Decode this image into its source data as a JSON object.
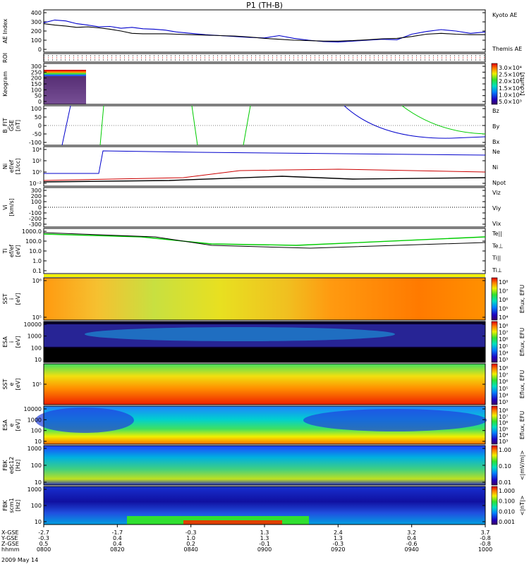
{
  "chart_data": {
    "type": "line",
    "title": "P1 (TH-B)",
    "date": "2009 May 14",
    "x_axis": {
      "row_labels": [
        "X-GSE",
        "Y-GSE",
        "Z-GSE",
        "hhmm"
      ],
      "ticks": [
        {
          "x": "-2.7",
          "y": "-0.3",
          "z": "0.5",
          "t": "0800"
        },
        {
          "x": "-1.7",
          "y": "0.4",
          "z": "0.4",
          "t": "0820"
        },
        {
          "x": "-0.3",
          "y": "1.0",
          "z": "0.2",
          "t": "0840"
        },
        {
          "x": "1.3",
          "y": "1.3",
          "z": "-0.1",
          "t": "0900"
        },
        {
          "x": "2.4",
          "y": "1.3",
          "z": "-0.3",
          "t": "0920"
        },
        {
          "x": "3.2",
          "y": "0.4",
          "z": "-0.6",
          "t": "0940"
        },
        {
          "x": "3.7",
          "y": "-0.8",
          "z": "-0.8",
          "t": "1000"
        }
      ]
    },
    "panels": [
      {
        "id": "ae",
        "ylabel": [
          "AE Index"
        ],
        "ticks": [
          "400",
          "300",
          "200",
          "100",
          "0"
        ],
        "legend": [
          {
            "text": "Kyoto AE",
            "color": "#0000cc"
          },
          {
            "text": "Themis AE",
            "color": "#000000"
          }
        ],
        "series": [
          {
            "name": "Kyoto AE",
            "color": "#0000cc",
            "x": [
              0,
              3,
              6,
              9,
              12,
              15,
              18,
              21,
              24,
              27,
              30,
              33,
              36,
              40,
              44,
              48,
              52,
              56,
              60,
              64,
              68,
              72,
              76,
              80,
              84,
              88,
              92,
              96,
              100,
              104,
              108,
              112,
              116,
              120
            ],
            "y": [
              290,
              320,
              310,
              280,
              265,
              245,
              250,
              230,
              240,
              225,
              220,
              210,
              190,
              175,
              160,
              150,
              140,
              130,
              125,
              150,
              120,
              100,
              85,
              80,
              90,
              100,
              110,
              105,
              165,
              195,
              215,
              200,
              175,
              190
            ]
          },
          {
            "name": "Themis AE",
            "color": "#000000",
            "x": [
              0,
              3,
              6,
              9,
              12,
              15,
              18,
              21,
              24,
              27,
              30,
              33,
              36,
              40,
              44,
              48,
              52,
              56,
              60,
              64,
              68,
              72,
              76,
              80,
              84,
              88,
              92,
              96,
              100,
              104,
              108,
              112,
              116,
              120
            ],
            "y": [
              280,
              265,
              255,
              240,
              245,
              235,
              220,
              200,
              175,
              170,
              170,
              170,
              165,
              160,
              155,
              150,
              145,
              135,
              120,
              110,
              100,
              95,
              90,
              90,
              95,
              105,
              115,
              120,
              140,
              165,
              175,
              165,
              160,
              160
            ]
          }
        ]
      },
      {
        "id": "roi",
        "ylabel": [
          "ROI"
        ],
        "ticks": [],
        "legend": []
      },
      {
        "id": "keogram",
        "ylabel": [
          "Keogram"
        ],
        "ticks": [
          "300",
          "250",
          "200",
          "150",
          "100",
          "50",
          "0"
        ],
        "colorbar": {
          "labels": [
            "3.0×10⁴",
            "2.5×10⁴",
            "2.0×10⁴",
            "1.5×10⁴",
            "1.0×10⁴",
            "5.0×10³"
          ],
          "units": "[counts]"
        }
      },
      {
        "id": "bfit",
        "ylabel": [
          "B_FIT",
          "GSE",
          "[nT]"
        ],
        "ticks": [
          "100",
          "50",
          "0",
          "-50",
          "-100"
        ],
        "legend": [
          {
            "text": "Bz",
            "color": "#cc0000"
          },
          {
            "text": "By",
            "color": "#00aa00"
          },
          {
            "text": "Bx",
            "color": "#0000cc"
          }
        ]
      },
      {
        "id": "ni",
        "ylabel": [
          "Ni",
          "ef/ef",
          "[1/cc]"
        ],
        "ticks": [
          "10⁴",
          "10²",
          "10⁰",
          "10⁻²"
        ],
        "legend": [
          {
            "text": "Ne",
            "color": "#cc0000"
          },
          {
            "text": "Ni",
            "color": "#000000"
          },
          {
            "text": "Npot",
            "color": "#0000cc"
          }
        ]
      },
      {
        "id": "vi",
        "ylabel": [
          "Vi",
          "[km/s]"
        ],
        "ticks": [
          "300",
          "200",
          "100",
          "0",
          "-100",
          "-200",
          "-300"
        ],
        "legend": [
          {
            "text": "Viz",
            "color": "#cc0000"
          },
          {
            "text": "Viy",
            "color": "#00aa00"
          },
          {
            "text": "Vix",
            "color": "#0000cc"
          }
        ]
      },
      {
        "id": "ti",
        "ylabel": [
          "Ti",
          "ef/ef",
          "[eV]"
        ],
        "ticks": [
          "1000.0",
          "100.0",
          "10.0",
          "1.0",
          "0.1"
        ],
        "legend": [
          {
            "text": "Te||",
            "color": "#000000"
          },
          {
            "text": "Te⊥",
            "color": "#cc0000"
          },
          {
            "text": "Ti||",
            "color": "#00aa00"
          },
          {
            "text": "Ti⊥",
            "color": "#0000cc"
          }
        ]
      },
      {
        "id": "sst_i",
        "ylabel": [
          "SST",
          "i",
          "[eV]"
        ],
        "ticks": [
          "10⁶",
          "10⁵"
        ],
        "colorbar": {
          "labels": [
            "10⁸",
            "10⁷",
            "10⁶",
            "10⁵",
            "10⁴"
          ],
          "units": "Eflux, EFU"
        }
      },
      {
        "id": "esa_i",
        "ylabel": [
          "ESA",
          "i",
          "[eV]"
        ],
        "ticks": [
          "10000",
          "1000",
          "100",
          "10"
        ],
        "colorbar": {
          "labels": [
            "10⁸",
            "10⁷",
            "10⁶",
            "10⁵",
            "10⁴",
            "10³"
          ],
          "units": "Eflux, EFU"
        }
      },
      {
        "id": "sst_e",
        "ylabel": [
          "SST",
          "e",
          "[eV]"
        ],
        "ticks": [
          "10⁵"
        ],
        "colorbar": {
          "labels": [
            "10⁸",
            "10⁷",
            "10⁶",
            "10⁵",
            "10⁴",
            "10³"
          ],
          "units": "Eflux, EFU"
        }
      },
      {
        "id": "esa_e",
        "ylabel": [
          "ESA",
          "e",
          "[eV]"
        ],
        "ticks": [
          "10000",
          "1000",
          "100",
          "10"
        ],
        "colorbar": {
          "labels": [
            "10⁸",
            "10⁷",
            "10⁶",
            "10⁵",
            "10⁴",
            "10³"
          ],
          "units": "Eflux, EFU"
        }
      },
      {
        "id": "fbk_e",
        "ylabel": [
          "FBK",
          "edc12",
          "[Hz]"
        ],
        "ticks": [
          "1000",
          "100",
          "10"
        ],
        "colorbar": {
          "labels": [
            "1.00",
            "0.10",
            "0.01"
          ],
          "units": "<|mV/m|>"
        }
      },
      {
        "id": "fbk_b",
        "ylabel": [
          "FBK",
          "scm1",
          "[Hz]"
        ],
        "ticks": [
          "1000",
          "100",
          "10"
        ],
        "colorbar": {
          "labels": [
            "1.000",
            "0.100",
            "0.010",
            "0.001"
          ],
          "units": "<|nT|>"
        }
      }
    ]
  }
}
